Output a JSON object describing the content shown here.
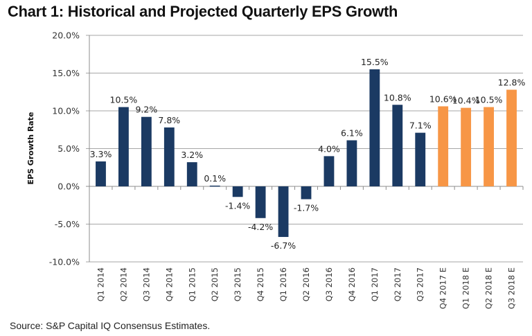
{
  "chart_data": {
    "type": "bar",
    "title": "Chart 1: Historical and Projected Quarterly EPS Growth",
    "xlabel": "",
    "ylabel": "EPS Growth Rate",
    "ylim": [
      -10,
      20
    ],
    "yticks": [
      -10,
      -5,
      0,
      5,
      10,
      15,
      20
    ],
    "ytick_labels": [
      "-10.0%",
      "-5.0%",
      "0.0%",
      "5.0%",
      "10.0%",
      "15.0%",
      "20.0%"
    ],
    "grid": true,
    "legend": "none",
    "categories": [
      "Q1 2014",
      "Q2 2014",
      "Q3 2014",
      "Q4 2014",
      "Q1 2015",
      "Q2 2015",
      "Q3 2015",
      "Q4 2015",
      "Q1 2016",
      "Q2 2016",
      "Q3 2016",
      "Q4 2016",
      "Q1 2017",
      "Q2 2017",
      "Q3 2017",
      "Q4 2017 E",
      "Q1 2018 E",
      "Q2 2018 E",
      "Q3 2018 E"
    ],
    "values": [
      3.3,
      10.5,
      9.2,
      7.8,
      3.2,
      0.1,
      -1.4,
      -4.2,
      -6.7,
      -1.7,
      4.0,
      6.1,
      15.5,
      10.8,
      7.1,
      10.6,
      10.4,
      10.5,
      12.8
    ],
    "data_labels": [
      "3.3%",
      "10.5%",
      "9.2%",
      "7.8%",
      "3.2%",
      "0.1%",
      "-1.4%",
      "-4.2%",
      "-6.7%",
      "-1.7%",
      "4.0%",
      "6.1%",
      "15.5%",
      "10.8%",
      "7.1%",
      "10.6%",
      "10.4%",
      "10.5%",
      "12.8%"
    ],
    "series_kind": [
      "historical",
      "historical",
      "historical",
      "historical",
      "historical",
      "historical",
      "historical",
      "historical",
      "historical",
      "historical",
      "historical",
      "historical",
      "historical",
      "historical",
      "historical",
      "estimate",
      "estimate",
      "estimate",
      "estimate"
    ],
    "colors": {
      "historical": "#1b3a63",
      "estimate": "#f79646"
    }
  },
  "source": "Source: S&P Capital IQ Consensus Estimates."
}
